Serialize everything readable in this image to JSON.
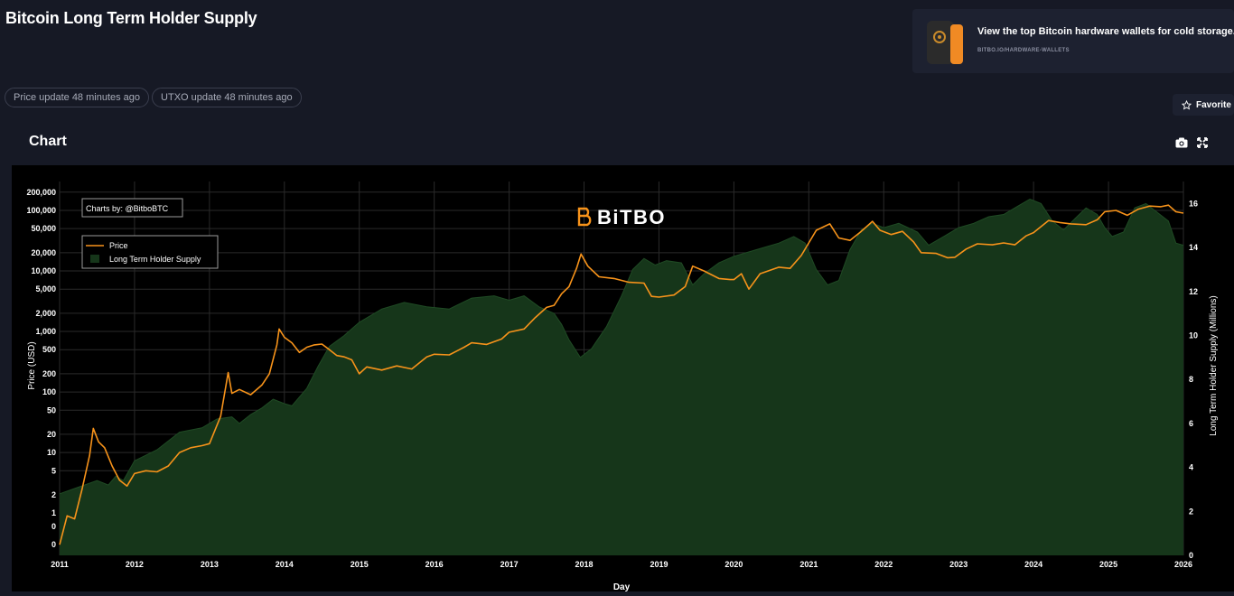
{
  "page": {
    "title": "Bitcoin Long Term Holder Supply",
    "price_update": "Price update 48 minutes ago",
    "utxo_update": "UTXO update 48 minutes ago",
    "favorite_label": "Favorite",
    "chart_heading": "Chart"
  },
  "ad": {
    "title": "View the top Bitcoin hardware wallets for cold storage.",
    "url": "BITBO.IO/HARDWARE-WALLETS"
  },
  "chart_data": {
    "type": "line",
    "watermark": "BiTBO",
    "credit": "Charts by: @BitboBTC",
    "xlabel": "Day",
    "ylabel_left": "Price (USD)",
    "ylabel_right": "Long Term Holder Supply (Millions)",
    "x_ticks": [
      "2011",
      "2012",
      "2013",
      "2014",
      "2015",
      "2016",
      "2017",
      "2018",
      "2019",
      "2020",
      "2021",
      "2022",
      "2023",
      "2024",
      "2025",
      "2026"
    ],
    "y_left_scale": "log",
    "y_left_range": [
      0.2,
      300000
    ],
    "y_left_ticks": [
      {
        "v": 0.3,
        "label": "0"
      },
      {
        "v": 0.6,
        "label": "0"
      },
      {
        "v": 1,
        "label": "1"
      },
      {
        "v": 2,
        "label": "2"
      },
      {
        "v": 5,
        "label": "5"
      },
      {
        "v": 10,
        "label": "10"
      },
      {
        "v": 20,
        "label": "20"
      },
      {
        "v": 50,
        "label": "50"
      },
      {
        "v": 100,
        "label": "100"
      },
      {
        "v": 200,
        "label": "200"
      },
      {
        "v": 500,
        "label": "500"
      },
      {
        "v": 1000,
        "label": "1,000"
      },
      {
        "v": 2000,
        "label": "2,000"
      },
      {
        "v": 5000,
        "label": "5,000"
      },
      {
        "v": 10000,
        "label": "10,000"
      },
      {
        "v": 20000,
        "label": "20,000"
      },
      {
        "v": 50000,
        "label": "50,000"
      },
      {
        "v": 100000,
        "label": "100,000"
      },
      {
        "v": 200000,
        "label": "200,000"
      }
    ],
    "y_right_range": [
      0,
      17
    ],
    "y_right_ticks": [
      0,
      2,
      4,
      6,
      8,
      10,
      12,
      14,
      16
    ],
    "grid": true,
    "legend_position": "top-left",
    "colors": {
      "price": "#f7931a",
      "supply_fill": "#16361a",
      "supply_line": "#1f4a24"
    },
    "series": [
      {
        "name": "Price",
        "axis": "left",
        "points": [
          [
            2011.0,
            0.3
          ],
          [
            2011.1,
            0.9
          ],
          [
            2011.2,
            0.8
          ],
          [
            2011.3,
            2.5
          ],
          [
            2011.4,
            9
          ],
          [
            2011.45,
            25
          ],
          [
            2011.52,
            15
          ],
          [
            2011.6,
            12
          ],
          [
            2011.7,
            6
          ],
          [
            2011.8,
            3.5
          ],
          [
            2011.9,
            2.8
          ],
          [
            2012.0,
            4.5
          ],
          [
            2012.15,
            5
          ],
          [
            2012.3,
            4.8
          ],
          [
            2012.45,
            6
          ],
          [
            2012.6,
            10
          ],
          [
            2012.75,
            12
          ],
          [
            2012.9,
            13
          ],
          [
            2013.0,
            14
          ],
          [
            2013.15,
            40
          ],
          [
            2013.25,
            210
          ],
          [
            2013.3,
            95
          ],
          [
            2013.4,
            110
          ],
          [
            2013.55,
            90
          ],
          [
            2013.7,
            130
          ],
          [
            2013.8,
            200
          ],
          [
            2013.9,
            600
          ],
          [
            2013.93,
            1100
          ],
          [
            2014.0,
            800
          ],
          [
            2014.1,
            650
          ],
          [
            2014.2,
            450
          ],
          [
            2014.3,
            550
          ],
          [
            2014.4,
            600
          ],
          [
            2014.5,
            620
          ],
          [
            2014.6,
            500
          ],
          [
            2014.7,
            400
          ],
          [
            2014.8,
            380
          ],
          [
            2014.9,
            340
          ],
          [
            2015.0,
            200
          ],
          [
            2015.1,
            260
          ],
          [
            2015.3,
            230
          ],
          [
            2015.5,
            270
          ],
          [
            2015.7,
            240
          ],
          [
            2015.9,
            380
          ],
          [
            2016.0,
            420
          ],
          [
            2016.2,
            410
          ],
          [
            2016.4,
            550
          ],
          [
            2016.5,
            650
          ],
          [
            2016.7,
            610
          ],
          [
            2016.9,
            750
          ],
          [
            2017.0,
            970
          ],
          [
            2017.2,
            1100
          ],
          [
            2017.35,
            1700
          ],
          [
            2017.5,
            2500
          ],
          [
            2017.6,
            2700
          ],
          [
            2017.7,
            4200
          ],
          [
            2017.8,
            5500
          ],
          [
            2017.9,
            11000
          ],
          [
            2017.96,
            19000
          ],
          [
            2018.05,
            12000
          ],
          [
            2018.2,
            8000
          ],
          [
            2018.4,
            7500
          ],
          [
            2018.6,
            6500
          ],
          [
            2018.8,
            6300
          ],
          [
            2018.9,
            3800
          ],
          [
            2019.0,
            3700
          ],
          [
            2019.2,
            4000
          ],
          [
            2019.35,
            5500
          ],
          [
            2019.45,
            12000
          ],
          [
            2019.6,
            10000
          ],
          [
            2019.8,
            7500
          ],
          [
            2019.95,
            7200
          ],
          [
            2020.0,
            7200
          ],
          [
            2020.1,
            9000
          ],
          [
            2020.2,
            5000
          ],
          [
            2020.35,
            9000
          ],
          [
            2020.6,
            11500
          ],
          [
            2020.75,
            11000
          ],
          [
            2020.9,
            18000
          ],
          [
            2021.0,
            29000
          ],
          [
            2021.1,
            47000
          ],
          [
            2021.28,
            60000
          ],
          [
            2021.4,
            35000
          ],
          [
            2021.55,
            32000
          ],
          [
            2021.7,
            45000
          ],
          [
            2021.85,
            66000
          ],
          [
            2021.95,
            47000
          ],
          [
            2022.1,
            40000
          ],
          [
            2022.25,
            45000
          ],
          [
            2022.4,
            30000
          ],
          [
            2022.5,
            20000
          ],
          [
            2022.7,
            19500
          ],
          [
            2022.85,
            16500
          ],
          [
            2022.95,
            16800
          ],
          [
            2023.1,
            23000
          ],
          [
            2023.25,
            28000
          ],
          [
            2023.45,
            27000
          ],
          [
            2023.6,
            29000
          ],
          [
            2023.75,
            27000
          ],
          [
            2023.9,
            38000
          ],
          [
            2024.0,
            43000
          ],
          [
            2024.2,
            68000
          ],
          [
            2024.35,
            63000
          ],
          [
            2024.5,
            60000
          ],
          [
            2024.7,
            58000
          ],
          [
            2024.85,
            70000
          ],
          [
            2024.95,
            95000
          ],
          [
            2025.1,
            100000
          ],
          [
            2025.25,
            83000
          ],
          [
            2025.4,
            105000
          ],
          [
            2025.55,
            118000
          ],
          [
            2025.7,
            115000
          ],
          [
            2025.8,
            122000
          ],
          [
            2025.9,
            95000
          ],
          [
            2026.0,
            90000
          ]
        ]
      },
      {
        "name": "Long Term Holder Supply",
        "axis": "right",
        "points": [
          [
            2011.0,
            2.8
          ],
          [
            2011.25,
            3.1
          ],
          [
            2011.5,
            3.4
          ],
          [
            2011.65,
            3.2
          ],
          [
            2011.75,
            3.6
          ],
          [
            2011.85,
            3.4
          ],
          [
            2012.0,
            4.3
          ],
          [
            2012.3,
            4.8
          ],
          [
            2012.6,
            5.6
          ],
          [
            2012.9,
            5.8
          ],
          [
            2013.1,
            6.2
          ],
          [
            2013.3,
            6.3
          ],
          [
            2013.4,
            6.0
          ],
          [
            2013.55,
            6.4
          ],
          [
            2013.7,
            6.7
          ],
          [
            2013.85,
            7.1
          ],
          [
            2014.0,
            6.9
          ],
          [
            2014.1,
            6.8
          ],
          [
            2014.3,
            7.6
          ],
          [
            2014.45,
            8.6
          ],
          [
            2014.6,
            9.5
          ],
          [
            2014.8,
            10.0
          ],
          [
            2015.0,
            10.6
          ],
          [
            2015.3,
            11.2
          ],
          [
            2015.6,
            11.5
          ],
          [
            2015.9,
            11.3
          ],
          [
            2016.2,
            11.2
          ],
          [
            2016.5,
            11.7
          ],
          [
            2016.8,
            11.8
          ],
          [
            2017.0,
            11.6
          ],
          [
            2017.2,
            11.8
          ],
          [
            2017.4,
            11.3
          ],
          [
            2017.6,
            11.0
          ],
          [
            2017.7,
            10.5
          ],
          [
            2017.8,
            9.8
          ],
          [
            2017.95,
            9.0
          ],
          [
            2018.1,
            9.4
          ],
          [
            2018.3,
            10.4
          ],
          [
            2018.5,
            11.8
          ],
          [
            2018.65,
            13.0
          ],
          [
            2018.8,
            13.5
          ],
          [
            2018.95,
            13.2
          ],
          [
            2019.1,
            13.4
          ],
          [
            2019.3,
            13.3
          ],
          [
            2019.45,
            12.3
          ],
          [
            2019.6,
            12.8
          ],
          [
            2019.8,
            13.3
          ],
          [
            2020.0,
            13.6
          ],
          [
            2020.3,
            13.9
          ],
          [
            2020.6,
            14.2
          ],
          [
            2020.8,
            14.5
          ],
          [
            2020.95,
            14.2
          ],
          [
            2021.1,
            13.0
          ],
          [
            2021.25,
            12.3
          ],
          [
            2021.4,
            12.5
          ],
          [
            2021.55,
            13.9
          ],
          [
            2021.7,
            14.8
          ],
          [
            2021.85,
            15.1
          ],
          [
            2022.0,
            14.9
          ],
          [
            2022.2,
            15.1
          ],
          [
            2022.45,
            14.7
          ],
          [
            2022.6,
            14.1
          ],
          [
            2022.8,
            14.5
          ],
          [
            2023.0,
            14.9
          ],
          [
            2023.2,
            15.1
          ],
          [
            2023.4,
            15.4
          ],
          [
            2023.6,
            15.5
          ],
          [
            2023.8,
            15.9
          ],
          [
            2023.95,
            16.2
          ],
          [
            2024.1,
            16.0
          ],
          [
            2024.25,
            15.2
          ],
          [
            2024.4,
            14.8
          ],
          [
            2024.55,
            15.3
          ],
          [
            2024.7,
            15.8
          ],
          [
            2024.85,
            15.5
          ],
          [
            2024.95,
            14.9
          ],
          [
            2025.05,
            14.5
          ],
          [
            2025.2,
            14.7
          ],
          [
            2025.35,
            15.8
          ],
          [
            2025.5,
            16.0
          ],
          [
            2025.65,
            15.6
          ],
          [
            2025.8,
            15.2
          ],
          [
            2025.9,
            14.2
          ],
          [
            2026.0,
            14.1
          ]
        ]
      }
    ]
  }
}
